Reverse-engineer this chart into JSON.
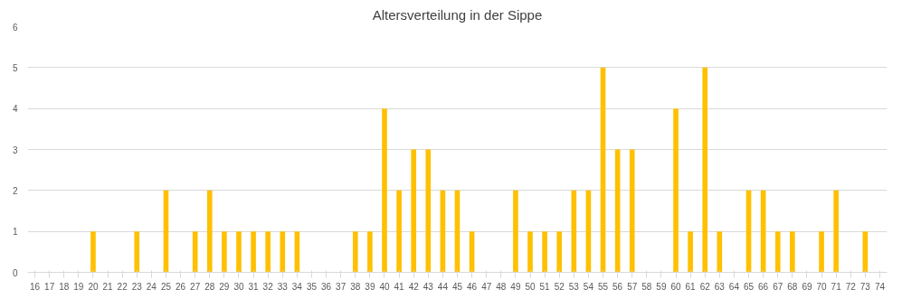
{
  "chart_data": {
    "type": "bar",
    "title": "Altersverteilung in der Sippe",
    "categories": [
      "16",
      "17",
      "18",
      "19",
      "20",
      "21",
      "22",
      "23",
      "24",
      "25",
      "26",
      "27",
      "28",
      "29",
      "30",
      "31",
      "32",
      "33",
      "34",
      "35",
      "36",
      "37",
      "38",
      "39",
      "40",
      "41",
      "42",
      "43",
      "44",
      "45",
      "46",
      "47",
      "48",
      "49",
      "50",
      "51",
      "52",
      "53",
      "54",
      "55",
      "56",
      "57",
      "58",
      "59",
      "60",
      "61",
      "62",
      "63",
      "64",
      "65",
      "66",
      "67",
      "68",
      "69",
      "70",
      "71",
      "72",
      "73",
      "74"
    ],
    "values": [
      0,
      0,
      0,
      0,
      1,
      0,
      0,
      1,
      0,
      2,
      0,
      1,
      2,
      1,
      1,
      1,
      1,
      1,
      1,
      0,
      0,
      0,
      1,
      1,
      4,
      2,
      3,
      3,
      2,
      2,
      1,
      0,
      0,
      2,
      1,
      1,
      1,
      2,
      2,
      5,
      3,
      3,
      0,
      0,
      4,
      1,
      5,
      1,
      0,
      2,
      2,
      1,
      1,
      0,
      1,
      2,
      0,
      1,
      0
    ],
    "color": "#ffc000",
    "ylim": [
      0,
      6
    ],
    "yticks": [
      0,
      1,
      2,
      3,
      4,
      5,
      6
    ],
    "grid": "y"
  }
}
